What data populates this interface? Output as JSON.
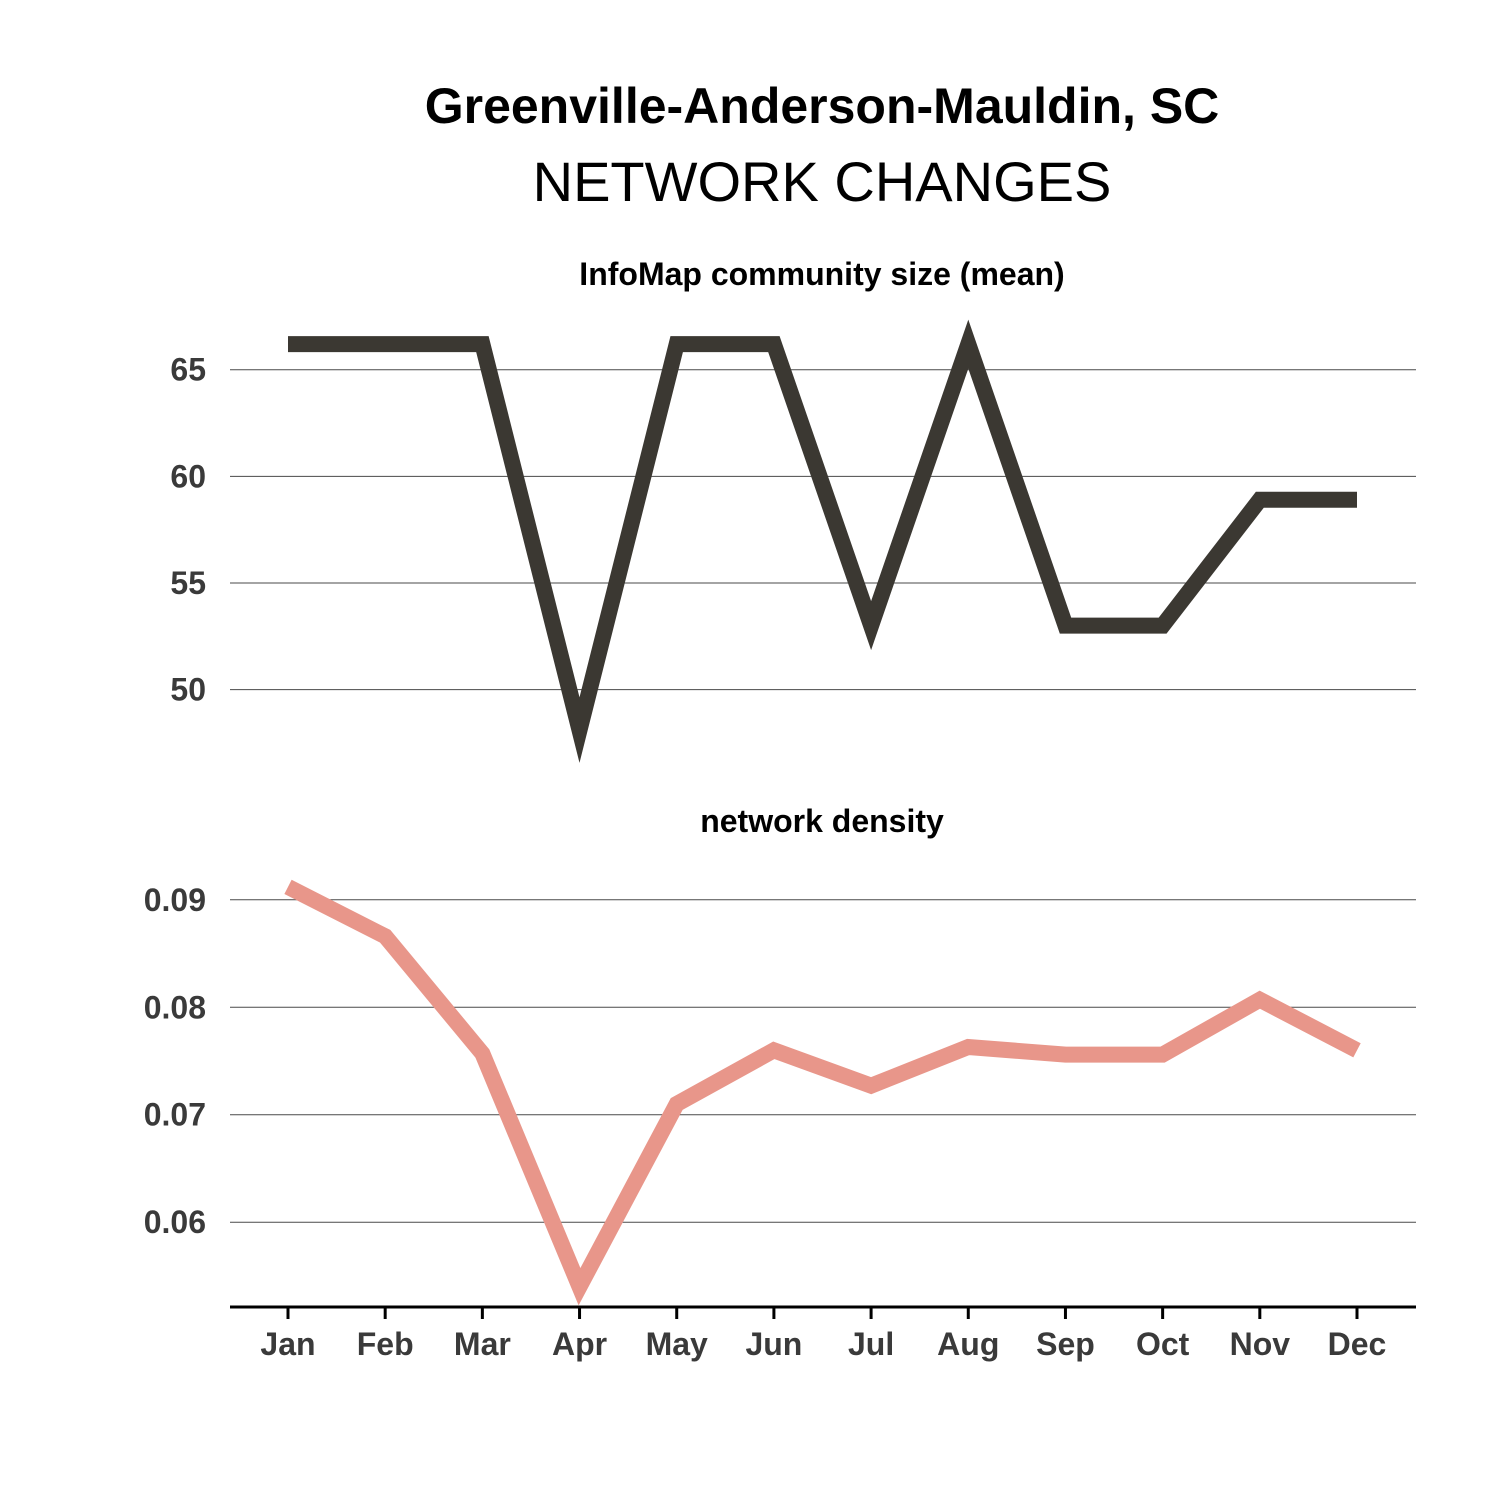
{
  "header": {
    "title": "Greenville-Anderson-Mauldin, SC",
    "subtitle": "NETWORK CHANGES"
  },
  "chart_data": [
    {
      "type": "line",
      "title": "InfoMap community size (mean)",
      "categories": [
        "Jan",
        "Feb",
        "Mar",
        "Apr",
        "May",
        "Jun",
        "Jul",
        "Aug",
        "Sep",
        "Oct",
        "Nov",
        "Dec"
      ],
      "values": [
        66.2,
        66.2,
        66.2,
        48.1,
        66.2,
        66.2,
        53.0,
        66.2,
        53.0,
        53.0,
        58.9,
        58.9
      ],
      "yticks": [
        50,
        55,
        60,
        65
      ],
      "ytick_labels": [
        "50",
        "55",
        "60",
        "65"
      ],
      "ylim": [
        46.7,
        67.8
      ],
      "grid": true,
      "color": "#3b3832",
      "xlabel": "",
      "ylabel": ""
    },
    {
      "type": "line",
      "title": "network density",
      "categories": [
        "Jan",
        "Feb",
        "Mar",
        "Apr",
        "May",
        "Jun",
        "Jul",
        "Aug",
        "Sep",
        "Oct",
        "Nov",
        "Dec"
      ],
      "values": [
        0.0912,
        0.0866,
        0.0757,
        0.054,
        0.071,
        0.076,
        0.0727,
        0.0763,
        0.0756,
        0.0756,
        0.0807,
        0.076
      ],
      "yticks": [
        0.06,
        0.07,
        0.08,
        0.09
      ],
      "ytick_labels": [
        "0.06",
        "0.07",
        "0.08",
        "0.09"
      ],
      "ylim": [
        0.0523,
        0.0937
      ],
      "grid": true,
      "color": "#e8968a",
      "xlabel": "",
      "ylabel": ""
    }
  ]
}
